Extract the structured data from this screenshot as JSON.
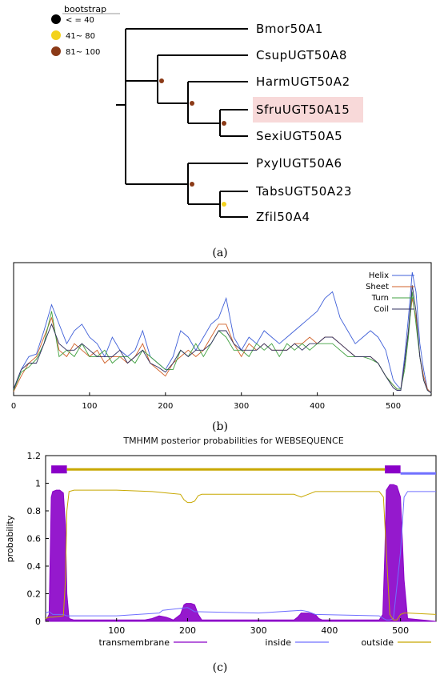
{
  "panel_labels": {
    "a": "(a)",
    "b": "(b)",
    "c": "(c)"
  },
  "colors": {
    "boot_low": "#000000",
    "boot_mid": "#f3d21c",
    "boot_high": "#8b3a17",
    "helix": "#4060d8",
    "sheet": "#d06028",
    "turn": "#40a040",
    "coil": "#303060",
    "tm": "#8a00c8",
    "inside": "#7070ff",
    "outside": "#c8a800",
    "highlight": "#f8d9d9"
  },
  "chart_data": [
    {
      "type": "tree",
      "legend_title": "bootstrap",
      "legend": [
        {
          "label": "< = 40",
          "color": "#000000"
        },
        {
          "label": "41~ 80",
          "color": "#f3d21c"
        },
        {
          "label": "81~ 100",
          "color": "#8b3a17"
        }
      ],
      "highlighted_leaf": "SfruUGT50A15",
      "leaves": [
        "Bmor50A1",
        "CsupUGT50A8",
        "HarmUGT50A2",
        "SfruUGT50A15",
        "SexiUGT50A5",
        "PxylUGT50A6",
        "TabsUGT50A23",
        "Zfil50A4"
      ],
      "newick": "(Bmor50A1,(CsupUGT50A8,(HarmUGT50A2,(SfruUGT50A15,SexiUGT50A5)[81-100])[81-100])[81-100],(PxylUGT50A6,(TabsUGT50A23,Zfil50A4)[41-80])[81-100])"
    },
    {
      "type": "line",
      "xlim": [
        0,
        550
      ],
      "ylim": [
        0,
        1
      ],
      "x_ticks": [
        0,
        100,
        200,
        300,
        400,
        500
      ],
      "series": [
        {
          "name": "Helix",
          "color": "#4060d8",
          "x": [
            0,
            10,
            20,
            30,
            40,
            50,
            60,
            70,
            80,
            90,
            100,
            110,
            120,
            130,
            140,
            150,
            160,
            170,
            180,
            190,
            200,
            210,
            220,
            230,
            240,
            250,
            260,
            270,
            280,
            290,
            300,
            310,
            320,
            330,
            340,
            350,
            360,
            370,
            380,
            390,
            400,
            410,
            420,
            430,
            440,
            450,
            460,
            470,
            480,
            490,
            500,
            505,
            510,
            515,
            520,
            525,
            530,
            535,
            540,
            545,
            550
          ],
          "values": [
            0.05,
            0.2,
            0.3,
            0.32,
            0.5,
            0.7,
            0.55,
            0.4,
            0.5,
            0.55,
            0.45,
            0.4,
            0.3,
            0.45,
            0.35,
            0.3,
            0.35,
            0.5,
            0.3,
            0.25,
            0.2,
            0.3,
            0.5,
            0.45,
            0.35,
            0.45,
            0.55,
            0.6,
            0.75,
            0.45,
            0.35,
            0.45,
            0.4,
            0.5,
            0.45,
            0.4,
            0.45,
            0.5,
            0.55,
            0.6,
            0.65,
            0.75,
            0.8,
            0.6,
            0.5,
            0.4,
            0.45,
            0.5,
            0.45,
            0.35,
            0.12,
            0.08,
            0.05,
            0.3,
            0.6,
            0.95,
            0.8,
            0.4,
            0.2,
            0.05,
            0.02
          ]
        },
        {
          "name": "Sheet",
          "color": "#d06028",
          "x": [
            0,
            10,
            20,
            30,
            40,
            50,
            60,
            70,
            80,
            90,
            100,
            110,
            120,
            130,
            140,
            150,
            160,
            170,
            180,
            190,
            200,
            210,
            220,
            230,
            240,
            250,
            260,
            270,
            280,
            290,
            300,
            310,
            320,
            330,
            340,
            350,
            360,
            370,
            380,
            390,
            400,
            410,
            420,
            430,
            440,
            450,
            460,
            470,
            480,
            490,
            500,
            505,
            510,
            515,
            520,
            525,
            530,
            535,
            540,
            545,
            550
          ],
          "values": [
            0.03,
            0.15,
            0.25,
            0.3,
            0.45,
            0.6,
            0.35,
            0.3,
            0.4,
            0.35,
            0.3,
            0.35,
            0.25,
            0.3,
            0.3,
            0.25,
            0.3,
            0.4,
            0.25,
            0.2,
            0.15,
            0.25,
            0.3,
            0.35,
            0.3,
            0.35,
            0.45,
            0.55,
            0.55,
            0.4,
            0.3,
            0.4,
            0.35,
            0.4,
            0.35,
            0.35,
            0.35,
            0.4,
            0.4,
            0.45,
            0.4,
            0.45,
            0.45,
            0.4,
            0.35,
            0.3,
            0.3,
            0.3,
            0.25,
            0.15,
            0.08,
            0.05,
            0.05,
            0.25,
            0.5,
            0.75,
            0.6,
            0.3,
            0.15,
            0.05,
            0.02
          ]
        },
        {
          "name": "Turn",
          "color": "#40a040",
          "x": [
            0,
            10,
            20,
            30,
            40,
            50,
            60,
            70,
            80,
            90,
            100,
            110,
            120,
            130,
            140,
            150,
            160,
            170,
            180,
            190,
            200,
            210,
            220,
            230,
            240,
            250,
            260,
            270,
            280,
            290,
            300,
            310,
            320,
            330,
            340,
            350,
            360,
            370,
            380,
            390,
            400,
            410,
            420,
            430,
            440,
            450,
            460,
            470,
            480,
            490,
            500,
            505,
            510,
            515,
            520,
            525,
            530,
            535,
            540,
            545,
            550
          ],
          "values": [
            0.04,
            0.18,
            0.22,
            0.28,
            0.4,
            0.65,
            0.3,
            0.35,
            0.3,
            0.4,
            0.3,
            0.3,
            0.35,
            0.25,
            0.3,
            0.3,
            0.25,
            0.35,
            0.3,
            0.25,
            0.2,
            0.2,
            0.35,
            0.3,
            0.4,
            0.3,
            0.4,
            0.5,
            0.45,
            0.35,
            0.35,
            0.3,
            0.4,
            0.35,
            0.4,
            0.3,
            0.4,
            0.35,
            0.4,
            0.35,
            0.4,
            0.4,
            0.4,
            0.35,
            0.3,
            0.3,
            0.3,
            0.28,
            0.25,
            0.15,
            0.08,
            0.05,
            0.05,
            0.2,
            0.45,
            0.8,
            0.55,
            0.3,
            0.12,
            0.04,
            0.02
          ]
        },
        {
          "name": "Coil",
          "color": "#303060",
          "x": [
            0,
            10,
            20,
            30,
            40,
            50,
            60,
            70,
            80,
            90,
            100,
            110,
            120,
            130,
            140,
            150,
            160,
            170,
            180,
            190,
            200,
            210,
            220,
            230,
            240,
            250,
            260,
            270,
            280,
            290,
            300,
            310,
            320,
            330,
            340,
            350,
            360,
            370,
            380,
            390,
            400,
            410,
            420,
            430,
            440,
            450,
            460,
            470,
            480,
            490,
            500,
            505,
            510,
            515,
            520,
            525,
            530,
            535,
            540,
            545,
            550
          ],
          "values": [
            0.05,
            0.2,
            0.25,
            0.25,
            0.4,
            0.55,
            0.4,
            0.35,
            0.35,
            0.4,
            0.35,
            0.3,
            0.3,
            0.3,
            0.35,
            0.25,
            0.3,
            0.35,
            0.25,
            0.22,
            0.18,
            0.25,
            0.35,
            0.3,
            0.35,
            0.35,
            0.4,
            0.5,
            0.5,
            0.4,
            0.35,
            0.35,
            0.35,
            0.4,
            0.35,
            0.35,
            0.35,
            0.4,
            0.35,
            0.4,
            0.4,
            0.45,
            0.45,
            0.4,
            0.35,
            0.3,
            0.3,
            0.3,
            0.25,
            0.15,
            0.06,
            0.04,
            0.04,
            0.25,
            0.5,
            0.85,
            0.65,
            0.3,
            0.12,
            0.04,
            0.02
          ]
        }
      ]
    },
    {
      "type": "area",
      "title": "TMHMM posterior probabilities for WEBSEQUENCE",
      "ylabel": "probability",
      "xlim": [
        0,
        550
      ],
      "ylim": [
        0,
        1.2
      ],
      "x_ticks": [
        100,
        200,
        300,
        400,
        500
      ],
      "y_ticks": [
        0,
        0.2,
        0.4,
        0.6,
        0.8,
        1,
        1.2
      ],
      "topology": [
        {
          "region": "transmembrane",
          "from": 8,
          "to": 30
        },
        {
          "region": "outside",
          "from": 30,
          "to": 478
        },
        {
          "region": "transmembrane",
          "from": 478,
          "to": 500
        },
        {
          "region": "inside",
          "from": 500,
          "to": 550
        }
      ],
      "series": [
        {
          "name": "transmembrane",
          "color": "#8a00c8",
          "x": [
            0,
            5,
            8,
            10,
            15,
            20,
            25,
            28,
            30,
            33,
            40,
            100,
            140,
            150,
            160,
            170,
            175,
            180,
            190,
            195,
            198,
            200,
            205,
            210,
            215,
            220,
            300,
            350,
            355,
            360,
            370,
            380,
            385,
            390,
            470,
            475,
            478,
            480,
            485,
            490,
            495,
            500,
            505,
            510,
            550
          ],
          "values": [
            0,
            0.05,
            0.9,
            0.94,
            0.95,
            0.95,
            0.93,
            0.7,
            0.2,
            0.02,
            0.01,
            0.01,
            0.01,
            0.02,
            0.04,
            0.03,
            0.02,
            0.01,
            0.05,
            0.12,
            0.13,
            0.13,
            0.13,
            0.12,
            0.05,
            0.01,
            0.01,
            0.01,
            0.03,
            0.06,
            0.06,
            0.05,
            0.02,
            0.01,
            0.01,
            0.05,
            0.5,
            0.95,
            0.99,
            0.99,
            0.98,
            0.9,
            0.3,
            0.02,
            0
          ]
        },
        {
          "name": "inside",
          "color": "#7070ff",
          "x": [
            0,
            5,
            10,
            25,
            30,
            35,
            100,
            160,
            165,
            200,
            210,
            300,
            360,
            370,
            380,
            470,
            476,
            480,
            485,
            490,
            500,
            505,
            510,
            550
          ],
          "values": [
            0.06,
            0.07,
            0.05,
            0.05,
            0.04,
            0.04,
            0.04,
            0.06,
            0.08,
            0.1,
            0.07,
            0.06,
            0.08,
            0.07,
            0.05,
            0.04,
            0.02,
            0.01,
            0.01,
            0.02,
            0.5,
            0.9,
            0.94,
            0.94
          ]
        },
        {
          "name": "outside",
          "color": "#c8a800",
          "x": [
            0,
            5,
            10,
            25,
            28,
            30,
            33,
            40,
            100,
            150,
            170,
            190,
            195,
            200,
            205,
            210,
            215,
            220,
            300,
            350,
            360,
            370,
            380,
            470,
            476,
            480,
            485,
            490,
            495,
            500,
            505,
            510,
            550
          ],
          "values": [
            0.02,
            0.03,
            0.03,
            0.04,
            0.3,
            0.8,
            0.94,
            0.95,
            0.95,
            0.94,
            0.93,
            0.92,
            0.88,
            0.86,
            0.86,
            0.87,
            0.91,
            0.92,
            0.92,
            0.92,
            0.9,
            0.92,
            0.94,
            0.94,
            0.9,
            0.5,
            0.05,
            0.01,
            0.01,
            0.05,
            0.06,
            0.06,
            0.05
          ]
        }
      ]
    }
  ]
}
